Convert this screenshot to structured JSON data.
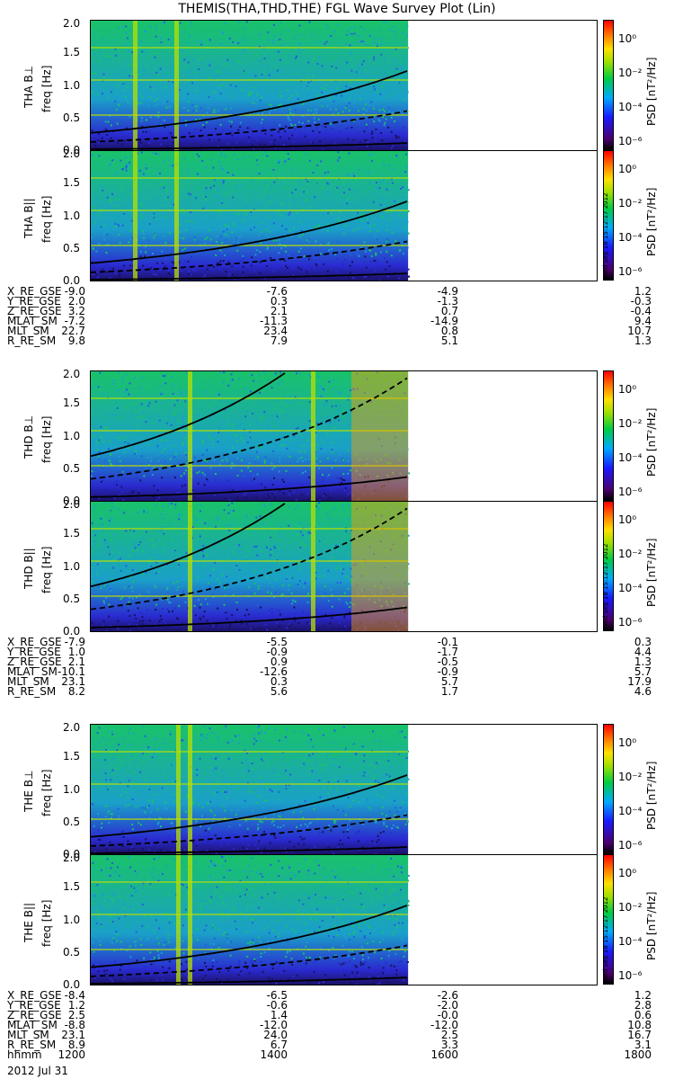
{
  "title": "THEMIS(THA,THD,THE) FGL Wave Survey Plot (Lin)",
  "colorbar": {
    "label": "PSD [nT²/Hz]",
    "ticks": [
      "10⁰",
      "10⁻²",
      "10⁻⁴",
      "10⁻⁶"
    ],
    "stamp": "Wed Sep 18 15:12:17 2012"
  },
  "chart_data": {
    "type": "heatmap",
    "x_hhmm": [
      1200,
      1400,
      1600,
      1800
    ],
    "x_tick_labels": [
      "1200",
      "1400",
      "1600",
      "1800"
    ],
    "date_label": "2012 Jul 31",
    "ylim": [
      0,
      2.0
    ],
    "y_ticks": [
      "2.0",
      "1.5",
      "1.0",
      "0.5",
      "0.0"
    ],
    "ylabel": "freq [Hz]",
    "colors": {
      "bg": "#1aa0c8",
      "mid": "#19c26a",
      "low": "#2a2ad0",
      "high": "#b8e000",
      "hot": "#ffa000"
    },
    "probes": [
      {
        "name": "THA",
        "panels": [
          {
            "label": "THA B⊥",
            "data_end_hhmm": 1545
          },
          {
            "label": "THA B||",
            "data_end_hhmm": 1545
          }
        ],
        "orbit": {
          "labels": [
            "X_RE_GSE",
            "Y_RE_GSE",
            "Z_RE_GSE",
            "MLAT_SM",
            "MLT_SM",
            "R_RE_SM"
          ],
          "values": [
            [
              "-9.0",
              "2.0",
              "3.2",
              "-7.2",
              "22.7",
              "9.8"
            ],
            [
              "-7.6",
              "0.3",
              "2.1",
              "-11.3",
              "23.4",
              "7.9"
            ],
            [
              "-4.9",
              "-1.3",
              "0.7",
              "-14.9",
              "0.8",
              "5.1"
            ],
            [
              "1.2",
              "-0.3",
              "-0.4",
              "9.4",
              "10.7",
              "1.3"
            ]
          ]
        }
      },
      {
        "name": "THD",
        "panels": [
          {
            "label": "THD B⊥",
            "data_end_hhmm": 1545
          },
          {
            "label": "THD B||",
            "data_end_hhmm": 1545
          }
        ],
        "orbit": {
          "labels": [
            "X_RE_GSE",
            "Y_RE_GSE",
            "Z_RE_GSE",
            "MLAT_SM",
            "MLT_SM",
            "R_RE_SM"
          ],
          "values": [
            [
              "-7.9",
              "1.0",
              "2.1",
              "-10.1",
              "23.1",
              "8.2"
            ],
            [
              "-5.5",
              "-0.9",
              "0.9",
              "-12.6",
              "0.3",
              "5.6"
            ],
            [
              "-0.1",
              "-1.7",
              "-0.5",
              "-0.9",
              "5.7",
              "1.7"
            ],
            [
              "0.3",
              "4.4",
              "1.3",
              "5.7",
              "17.9",
              "4.6"
            ]
          ]
        }
      },
      {
        "name": "THE",
        "panels": [
          {
            "label": "THE B⊥",
            "data_end_hhmm": 1545
          },
          {
            "label": "THE B||",
            "data_end_hhmm": 1545
          }
        ],
        "orbit": {
          "labels": [
            "X_RE_GSE",
            "Y_RE_GSE",
            "Z_RE_GSE",
            "MLAT_SM",
            "MLT_SM",
            "R_RE_SM",
            "hhmm"
          ],
          "values": [
            [
              "-8.4",
              "1.2",
              "2.5",
              "-8.8",
              "23.1",
              "8.9",
              "1200"
            ],
            [
              "-6.5",
              "-0.6",
              "1.4",
              "-12.0",
              "24.0",
              "6.7",
              "1400"
            ],
            [
              "-2.6",
              "-2.0",
              "-0.0",
              "-12.0",
              "2.5",
              "3.3",
              "1600"
            ],
            [
              "1.2",
              "2.8",
              "0.6",
              "10.8",
              "16.7",
              "3.1",
              "1800"
            ]
          ]
        }
      }
    ]
  }
}
